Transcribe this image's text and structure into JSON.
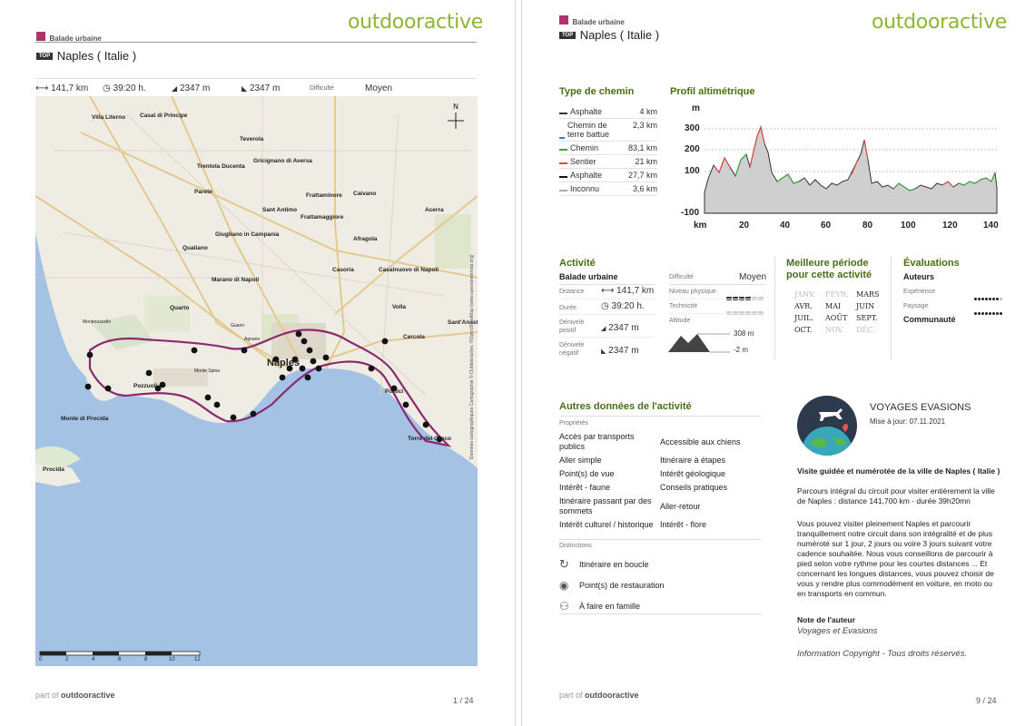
{
  "brand": "outdooractive",
  "page1": {
    "category": "Balade urbaine",
    "top_badge": "TOP",
    "title": "Naples ( Italie )",
    "stats": {
      "distance": "141,7 km",
      "duration": "39:20 h.",
      "ascent": "2347 m",
      "descent": "2347 m",
      "difficulty_label": "Difficulté",
      "difficulty_value": "Moyen"
    },
    "map": {
      "towns": [
        "Villa Literno",
        "Casal di Principe",
        "Teverola",
        "Trentola Ducenta",
        "Gricignano di Aversa",
        "Parete",
        "Frattaminore",
        "Caivano",
        "Sant Antimo",
        "Frattamaggiore",
        "Acerra",
        "Giugliano in Campania",
        "Afragola",
        "Qualiano",
        "Casoria",
        "Casalnuovo di Napoli",
        "Marano di Napoli",
        "Quarto",
        "Volla",
        "Sant'Anast",
        "Cercola",
        "Naples",
        "Portici",
        "Monte di Procida",
        "Torre del Greco",
        "Procida",
        "Pozzuoli",
        "Monteruscello",
        "Guano",
        "Agnano",
        "Monte Spina"
      ],
      "copyright": "Données cartographiques Cartographie © Outdooractive; ©OpenStreetMap (www.openstreetmap.org)",
      "scale_labels": [
        "0",
        "2",
        "4",
        "6",
        "8",
        "10",
        "12"
      ]
    },
    "footer_prefix": "part of",
    "footer_brand": "outdooractive",
    "page_number": "1 / 24"
  },
  "page2": {
    "category": "Balade urbaine",
    "top_badge": "TOP",
    "title": "Naples ( Italie )",
    "path_types": {
      "heading": "Type de chemin",
      "rows": [
        {
          "label": "Asphalte",
          "value": "4 km",
          "color": "#333333"
        },
        {
          "label": "Chemin de terre battue",
          "value": "2,3 km",
          "color": "#2d7fc7"
        },
        {
          "label": "Chemin",
          "value": "83,1 km",
          "color": "#3fa33f"
        },
        {
          "label": "Sentier",
          "value": "21 km",
          "color": "#e04848"
        },
        {
          "label": "Asphalte",
          "value": "27,7 km",
          "color": "#111111"
        },
        {
          "label": "Inconnu",
          "value": "3,6 km",
          "color": "#aaaaaa"
        }
      ]
    },
    "profile": {
      "heading": "Profil altimétrique",
      "y_unit": "m",
      "x_unit": "km",
      "y_ticks": [
        "300",
        "200",
        "100",
        "-100"
      ],
      "x_ticks": [
        "20",
        "40",
        "60",
        "80",
        "100",
        "120",
        "140"
      ]
    },
    "activity": {
      "heading": "Activité",
      "type": "Balade urbaine",
      "distance_label": "Distance",
      "distance": "141,7 km",
      "duration_label": "Durée",
      "duration": "39:20 h.",
      "ascent_label": "Dénivelé positif",
      "ascent": "2347 m",
      "descent_label": "Dénivelé négatif",
      "descent": "2347 m",
      "difficulty_label": "Difficulté",
      "difficulty": "Moyen",
      "physical_label": "Niveau physique",
      "physical_level": 4,
      "technique_label": "Technicité",
      "technique_level": 0,
      "altitude_label": "Altitude",
      "alt_max": "308 m",
      "alt_min": "-2 m"
    },
    "best_period": {
      "heading": "Meilleure période pour cette activité",
      "months": [
        {
          "m": "JANV.",
          "on": false
        },
        {
          "m": "FÉVR.",
          "on": false
        },
        {
          "m": "MARS",
          "on": true
        },
        {
          "m": "AVR.",
          "on": true
        },
        {
          "m": "MAI",
          "on": true
        },
        {
          "m": "JUIN",
          "on": true
        },
        {
          "m": "JUIL.",
          "on": true
        },
        {
          "m": "AOÛT",
          "on": true
        },
        {
          "m": "SEPT.",
          "on": true
        },
        {
          "m": "OCT.",
          "on": true
        },
        {
          "m": "NOV.",
          "on": false
        },
        {
          "m": "DÉC.",
          "on": false
        }
      ]
    },
    "ratings": {
      "heading": "Évaluations",
      "authors": "Auteurs",
      "experience_label": "Expérience",
      "experience": 4,
      "landscape_label": "Paysage",
      "landscape": 5,
      "community": "Communauté"
    },
    "other": {
      "heading": "Autres données de l'activité",
      "props_label": "Propriétés",
      "props_left": [
        "Accès par transports publics",
        "Aller simple",
        "Point(s) de vue",
        "Intérêt - faune",
        "Itinéraire passant par des sommets",
        "Intérêt culturel / historique"
      ],
      "props_right": [
        "Accessible aux chiens",
        "Itinéraire à étapes",
        "Intérêt géologique",
        "Conseils pratiques",
        "Aller-retour",
        "Intérêt - flore"
      ],
      "dist_label": "Distinctions",
      "distinctions": [
        "Itinéraire en boucle",
        "Point(s) de restauration",
        "À faire en famille"
      ]
    },
    "author": {
      "name": "VOYAGES EVASIONS",
      "updated": "Mise à jour: 07.11.2021",
      "desc_title": "Visite guidée et numérotée de la ville de Naples ( Italie )",
      "desc1": "Parcours intégral du circuit pour visiter entièrement la ville de Naples : distance 141,700 km - durée 39h20mn",
      "desc2": "Vous pouvez visiter pleinement Naples et parcourir tranquillement notre circuit dans son intégralité et de plus numéroté sur 1 jour, 2 jours ou voire 3 jours suivant votre cadence souhaitée. Nous vous conseillons de parcourir à pied selon votre rythme pour les courtes distances ... Et concernant les longues distances, vous pouvez choisir de vous y rendre plus commodément en voiture, en moto ou en transports en commun.",
      "note_label": "Note de l'auteur",
      "note": "Voyages et Evasions",
      "copyright": "Information Copyright - Tous droits réservés."
    },
    "footer_prefix": "part of",
    "footer_brand": "outdooractive",
    "page_number": "9 / 24"
  }
}
